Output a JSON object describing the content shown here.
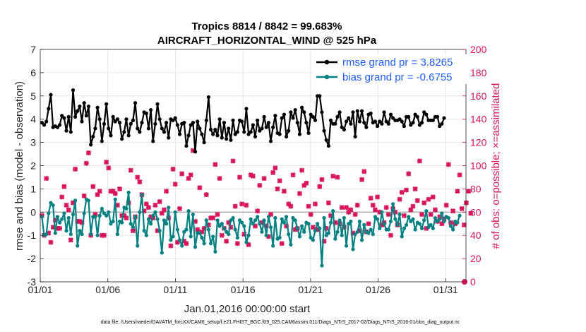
{
  "chart_data": {
    "type": "line",
    "title": "Tropics 8814 / 8842 = 99.683%",
    "subtitle": "AIRCRAFT_HORIZONTAL_WIND @ 525 hPa",
    "xlabel": "Jan.01,2016 00:00:00 start",
    "ylabel": "rmse and bias (model - observation)",
    "y2label": "# of obs: o=possible; ×=assimilated",
    "footnote": "data file: /Users/raeder/DAI/ATM_forcXX/CAM6_setup/f.e21.FHIST_BGC.f09_025.CAM6assim.011/Diags_NTrS_2017-02/Diags_NTrS_2016-01/obs_diag_output.nc",
    "xlim": [
      1,
      32.5
    ],
    "ylim": [
      -3,
      7
    ],
    "y2lim": [
      0,
      200
    ],
    "xticks": [
      1,
      6,
      11,
      16,
      21,
      26,
      31
    ],
    "xtick_labels": [
      "01/01",
      "01/06",
      "01/11",
      "01/16",
      "01/21",
      "01/26",
      "01/31"
    ],
    "yticks": [
      "-3",
      "-2",
      "-1",
      "0",
      "1",
      "2",
      "3",
      "4",
      "5",
      "6",
      "7"
    ],
    "y2ticks": [
      "0",
      "20",
      "40",
      "60",
      "80",
      "100",
      "120",
      "140",
      "160",
      "180",
      "200"
    ],
    "grid": true,
    "legend": "top-right",
    "colors": {
      "rmse": "#000000",
      "bias": "#008080",
      "obs": "#d9135b",
      "zero_line": "#b0b0b0",
      "legend_text": "#1f5fff"
    },
    "series": [
      {
        "name": "rmse grand pr = 3.8265",
        "axis": "left",
        "values": [
          3.85,
          3.75,
          3.9,
          4.45,
          5.05,
          3.65,
          3.7,
          3.65,
          3.75,
          4.15,
          4.05,
          3.5,
          4.1,
          3.45,
          5.25,
          4.1,
          4.35,
          4.55,
          3.9,
          4.7,
          4.15,
          4.55,
          2.9,
          3.25,
          3.6,
          4.5,
          4.0,
          3.05,
          3.8,
          4.65,
          3.6,
          3.3,
          4.1,
          3.9,
          4.0,
          3.85,
          3.15,
          3.45,
          4.0,
          3.3,
          3.8,
          3.95,
          4.7,
          3.6,
          3.45,
          3.85,
          4.3,
          4.25,
          3.6,
          4.4,
          3.05,
          3.8,
          4.65,
          4.0,
          3.6,
          3.45,
          3.85,
          3.2,
          4.0,
          3.95,
          4.05,
          3.75,
          3.35,
          3.8,
          3.85,
          2.85,
          3.3,
          3.75,
          3.85,
          2.6,
          3.9,
          3.6,
          3.35,
          3.0,
          3.95,
          4.95,
          3.55,
          3.35,
          3.55,
          3.3,
          4.0,
          3.2,
          3.85,
          3.15,
          3.6,
          3.1,
          3.95,
          3.35,
          3.45,
          3.95,
          3.9,
          3.45,
          4.45,
          3.35,
          3.45,
          3.75,
          3.25,
          3.95,
          3.5,
          3.6,
          4.1,
          3.65,
          3.85,
          3.05,
          3.65,
          4.15,
          3.4,
          3.35,
          4.05,
          4.2,
          3.25,
          3.5,
          4.3,
          4.05,
          4.4,
          3.85,
          3.35,
          4.5,
          4.3,
          3.85,
          3.4,
          4.2,
          4.1,
          3.95,
          5.0,
          5.0,
          4.3,
          3.5,
          3.1,
          2.85,
          3.95,
          3.8,
          3.8,
          4.1,
          4.3,
          3.65,
          3.55,
          3.9,
          4.05,
          3.8,
          4.3,
          3.25,
          4.35,
          3.9,
          4.35,
          3.85,
          3.65,
          4.2,
          4.25,
          3.85,
          3.9,
          3.7,
          3.9,
          3.8,
          4.3,
          3.9,
          3.8,
          4.2,
          4.05,
          3.95,
          3.95,
          4.0,
          3.9,
          3.7,
          4.1,
          4.1,
          3.75,
          3.85,
          4.2,
          4.1,
          3.75,
          3.85,
          4.3,
          4.2,
          3.95,
          3.95,
          3.95,
          4.1,
          4.1,
          3.7,
          3.8,
          4.05
        ]
      },
      {
        "name": "bias grand pr = -0.6755",
        "axis": "left",
        "values": [
          -0.2,
          -1.0,
          -0.95,
          -0.05,
          0.4,
          0.3,
          -0.9,
          -0.2,
          -0.45,
          -0.3,
          -0.05,
          -0.8,
          -0.25,
          -0.95,
          -0.1,
          0.5,
          -1.45,
          -0.8,
          -0.95,
          -0.05,
          0.55,
          0.5,
          -0.95,
          -0.2,
          -0.2,
          -1.0,
          -0.15,
          0.15,
          -0.05,
          -0.15,
          0.0,
          -0.5,
          -0.4,
          0.55,
          -0.95,
          -0.4,
          -0.45,
          0.2,
          0.15,
          0.85,
          -0.5,
          -0.65,
          -0.2,
          -1.45,
          0.0,
          0.75,
          -0.8,
          -1.0,
          -0.3,
          -0.5,
          -0.15,
          0.0,
          -0.3,
          -0.8,
          -1.75,
          -0.35,
          -0.5,
          0.2,
          -1.2,
          -1.05,
          0.0,
          -0.75,
          -1.2,
          -1.45,
          -0.85,
          -0.75,
          0.05,
          -1.05,
          -0.1,
          -1.5,
          -0.9,
          -0.9,
          -1.1,
          -1.35,
          -0.35,
          -0.75,
          -1.35,
          -1.05,
          -1.7,
          -0.35,
          -0.6,
          -0.5,
          -0.7,
          -0.85,
          -0.95,
          -0.35,
          -0.25,
          -0.75,
          -1.1,
          -0.35,
          -0.45,
          -0.6,
          -1.3,
          -1.0,
          -0.3,
          -0.5,
          -0.35,
          -0.2,
          -0.5,
          -0.85,
          -0.35,
          -1.0,
          -0.2,
          -0.65,
          -1.45,
          -0.25,
          -1.15,
          -1.1,
          -0.3,
          -0.45,
          -0.2,
          -0.95,
          -1.4,
          -0.25,
          -0.35,
          -0.7,
          -1.05,
          -0.6,
          -0.85,
          -0.45,
          -0.5,
          -1.1,
          -1.2,
          -0.8,
          -0.5,
          -0.7,
          -2.3,
          -0.25,
          -1.0,
          -0.9,
          -0.45,
          0.05,
          -1.15,
          -0.85,
          -0.35,
          -1.0,
          -0.25,
          -1.45,
          -0.5,
          -0.4,
          -1.6,
          -0.95,
          -0.85,
          -0.4,
          -1.2,
          -0.55,
          -0.85,
          -0.9,
          -0.75,
          -0.95,
          -0.2,
          -0.3,
          -0.7,
          0.0,
          -0.5,
          -0.75,
          -0.75,
          -0.4,
          0.35,
          -0.3,
          -0.55,
          -0.1,
          -1.05,
          -0.7,
          -0.55,
          -0.2,
          -0.4,
          -0.3,
          -0.75,
          -0.45,
          -0.5,
          -0.7,
          -0.35,
          0.05,
          -0.65,
          -0.55,
          -0.7,
          -0.25,
          -0.4,
          -0.3,
          -0.05,
          -0.4,
          -0.2,
          -0.25,
          -0.6,
          -0.75,
          -0.4,
          -0.45,
          -0.15
        ]
      },
      {
        "name": "# obs possible / assimilated",
        "axis": "right",
        "values": [
          57,
          40,
          89,
          42,
          34,
          47,
          53,
          46,
          46,
          73,
          82,
          66,
          62,
          36,
          68,
          97,
          52,
          52,
          51,
          74,
          102,
          111,
          40,
          82,
          58,
          75,
          78,
          40,
          40,
          103,
          98,
          78,
          78,
          76,
          66,
          80,
          57,
          57,
          55,
          68,
          96,
          44,
          56,
          90,
          86,
          75,
          61,
          67,
          64,
          56,
          55,
          66,
          44,
          69,
          59,
          62,
          78,
          55,
          31,
          97,
          84,
          34,
          63,
          93,
          35,
          33,
          89,
          92,
          113,
          52,
          45,
          81,
          43,
          46,
          75,
          49,
          55,
          55,
          101,
          58,
          89,
          40,
          46,
          35,
          51,
          47,
          104,
          65,
          33,
          90,
          67,
          41,
          66,
          32,
          92,
          91,
          48,
          61,
          83,
          51,
          89,
          48,
          39,
          58,
          94,
          98,
          80,
          87,
          33,
          78,
          48,
          67,
          65,
          92,
          45,
          46,
          76,
          96,
          83,
          85,
          65,
          58,
          47,
          67,
          45,
          82,
          88,
          35,
          46,
          68,
          57,
          91,
          51,
          90,
          50,
          64,
          47,
          64,
          60,
          62,
          42,
          58,
          66,
          44,
          88,
          95,
          43,
          50,
          72,
          66,
          62,
          73,
          60,
          49,
          51,
          64,
          58,
          40,
          63,
          60,
          49,
          71,
          77,
          57,
          79,
          93,
          62,
          65,
          80,
          70,
          104,
          58,
          68,
          46,
          71,
          58,
          73,
          62,
          52,
          56,
          50,
          54,
          66,
          101,
          51,
          61,
          50,
          78,
          92,
          63,
          49,
          68,
          78,
          59
        ]
      }
    ]
  }
}
